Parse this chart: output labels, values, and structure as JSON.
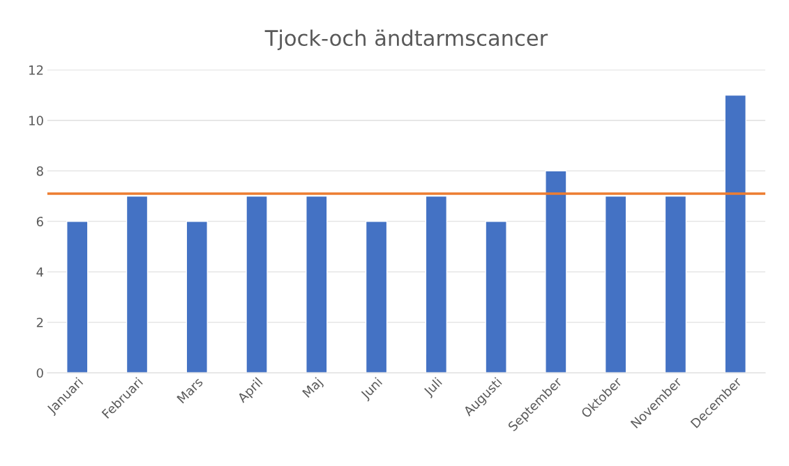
{
  "chart_data": {
    "type": "bar",
    "title": "Tjock-och ändtarmscancer",
    "categories": [
      "Januari",
      "Februari",
      "Mars",
      "April",
      "Maj",
      "Juni",
      "Juli",
      "Augusti",
      "September",
      "Oktober",
      "November",
      "December"
    ],
    "values": [
      6,
      7,
      6,
      7,
      7,
      6,
      7,
      6,
      8,
      7,
      7,
      11
    ],
    "color": "#4472c4",
    "ylim": [
      0,
      12
    ],
    "yticks": [
      0,
      2,
      4,
      6,
      8,
      10,
      12
    ],
    "grid": "y",
    "ref_lines": [
      {
        "axis": "y",
        "value": 7.1,
        "color": "#ed7d31"
      }
    ]
  }
}
